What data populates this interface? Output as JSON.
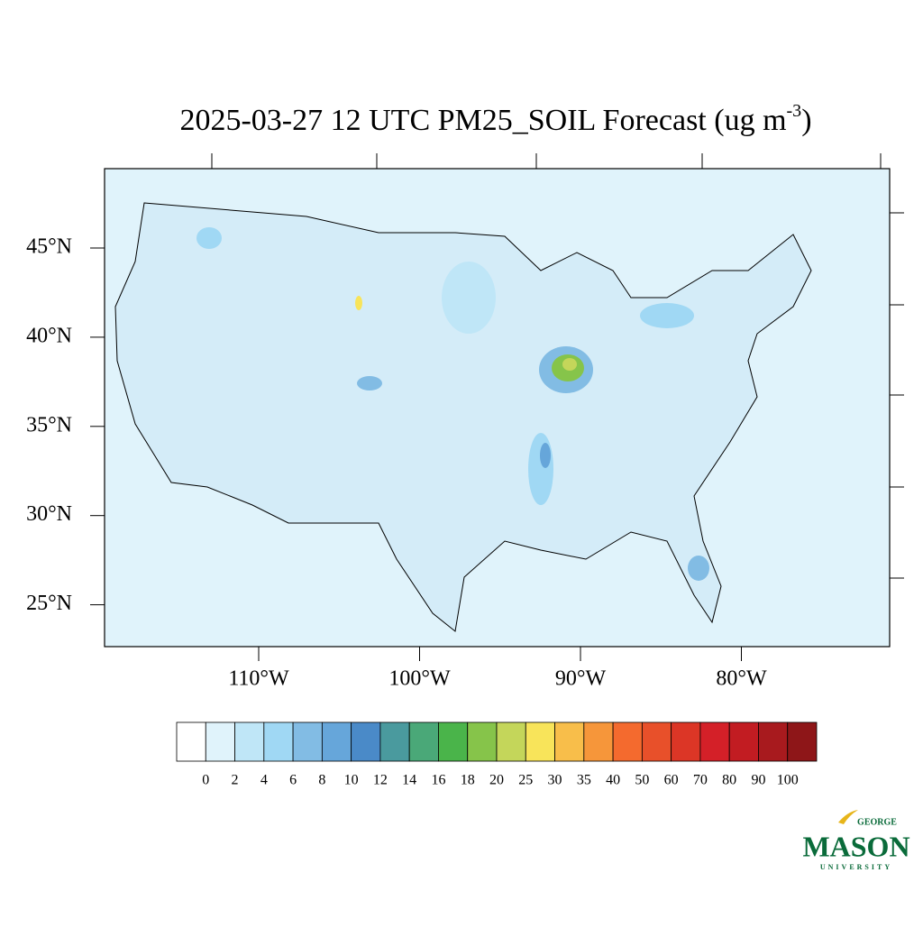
{
  "map": {
    "title": {
      "text": "2025-03-27 12 UTC PM25_SOIL Forecast (ug m",
      "superscript": "-3",
      "close": ")"
    },
    "lat_ticks": [
      {
        "value": 45,
        "label": "45°N"
      },
      {
        "value": 40,
        "label": "40°N"
      },
      {
        "value": 35,
        "label": "35°N"
      },
      {
        "value": 30,
        "label": "30°N"
      },
      {
        "value": 25,
        "label": "25°N"
      }
    ],
    "lon_ticks": [
      {
        "value": -110,
        "label": "110°W"
      },
      {
        "value": -100,
        "label": "100°W"
      },
      {
        "value": -90,
        "label": "90°W"
      },
      {
        "value": -80,
        "label": "80°W"
      }
    ],
    "colorbar": {
      "levels": [
        0,
        2,
        4,
        6,
        8,
        10,
        12,
        14,
        16,
        18,
        20,
        25,
        30,
        35,
        40,
        50,
        60,
        70,
        80,
        90,
        100
      ],
      "colors": [
        "#ffffff",
        "#e0f3fb",
        "#bfe6f7",
        "#a0d8f4",
        "#82bce4",
        "#66a6da",
        "#4a8ac8",
        "#4a9a9e",
        "#4aa878",
        "#4ab44a",
        "#86c44a",
        "#c4d65a",
        "#f8e45a",
        "#f8be4a",
        "#f6963a",
        "#f46a2e",
        "#e8502a",
        "#dc3626",
        "#d42028",
        "#c21c22",
        "#a81a1e",
        "#8e1618"
      ]
    },
    "logo": {
      "top": "GEORGE",
      "main": "MASON",
      "bottom": "UNIVERSITY"
    }
  }
}
